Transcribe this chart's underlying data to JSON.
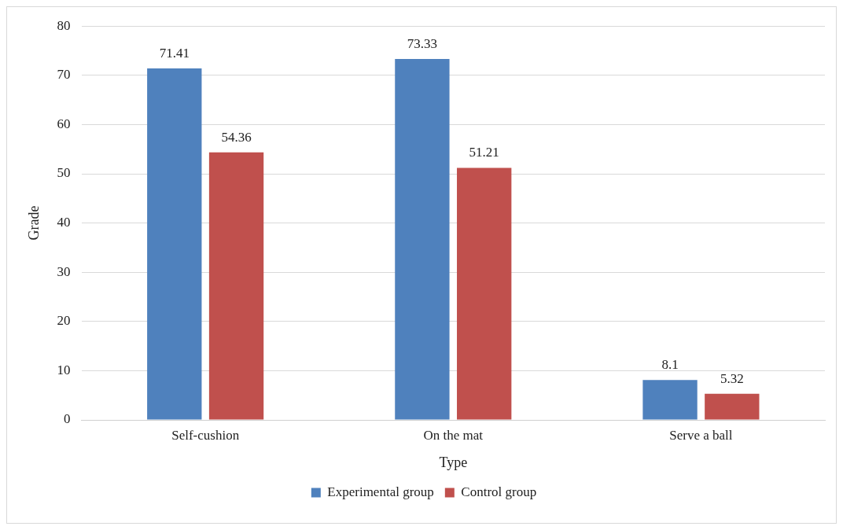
{
  "chart_data": {
    "type": "bar",
    "xlabel": "Type",
    "ylabel": "Grade",
    "categories": [
      "Self-cushion",
      "On the mat",
      "Serve a ball"
    ],
    "series": [
      {
        "name": "Experimental group",
        "color": "#4f81bd",
        "values": [
          71.41,
          73.33,
          8.1
        ]
      },
      {
        "name": "Control group",
        "color": "#c0504d",
        "values": [
          54.36,
          51.21,
          5.32
        ]
      }
    ],
    "ylim": [
      0,
      80
    ],
    "yticks": [
      0,
      10,
      20,
      30,
      40,
      50,
      60,
      70,
      80
    ],
    "grid": "y",
    "legend": "bottom",
    "data_labels": true
  }
}
